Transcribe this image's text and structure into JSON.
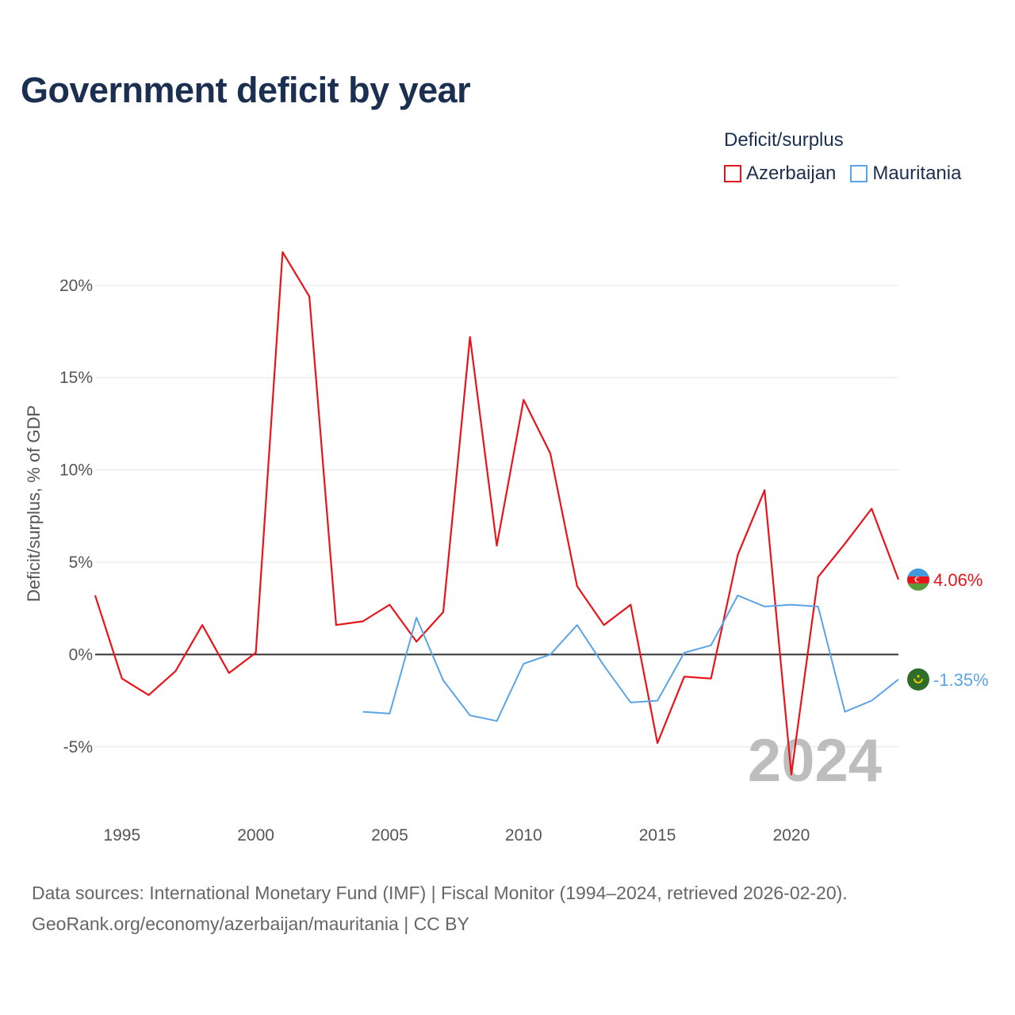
{
  "title": "Government deficit by year",
  "legend": {
    "title": "Deficit/surplus",
    "items": [
      {
        "name": "Azerbaijan",
        "color": "#e8141b"
      },
      {
        "name": "Mauritania",
        "color": "#5ba4e6"
      }
    ]
  },
  "footer": {
    "line1": "Data sources: International Monetary Fund (IMF) | Fiscal Monitor (1994–2024, retrieved 2026-02-20).",
    "line2": "GeoRank.org/economy/azerbaijan/mauritania | CC BY"
  },
  "chart_data": {
    "type": "line",
    "title": "Government deficit by year",
    "xlabel": "",
    "ylabel": "Deficit/surplus, % of GDP",
    "xlim": [
      1994,
      2024
    ],
    "ylim": [
      -7.5,
      23
    ],
    "xticks": [
      1995,
      2000,
      2005,
      2010,
      2015,
      2020
    ],
    "yticks": [
      -5,
      0,
      5,
      10,
      15,
      20
    ],
    "ytick_labels": [
      "-5%",
      "0%",
      "5%",
      "10%",
      "15%",
      "20%"
    ],
    "year_label": "2024",
    "series": [
      {
        "name": "Azerbaijan",
        "color": "#e8141b",
        "end_label": "4.06%",
        "x": [
          1994,
          1995,
          1996,
          1997,
          1998,
          1999,
          2000,
          2001,
          2002,
          2003,
          2004,
          2005,
          2006,
          2007,
          2008,
          2009,
          2010,
          2011,
          2012,
          2013,
          2014,
          2015,
          2016,
          2017,
          2018,
          2019,
          2020,
          2021,
          2022,
          2023,
          2024
        ],
        "values": [
          3.2,
          -1.3,
          -2.2,
          -0.9,
          1.6,
          -1.0,
          0.1,
          21.8,
          19.4,
          1.6,
          1.8,
          2.7,
          0.7,
          2.3,
          17.2,
          5.9,
          13.8,
          10.9,
          3.7,
          1.6,
          2.7,
          -4.8,
          -1.2,
          -1.3,
          5.4,
          8.9,
          -6.5,
          4.2,
          6.0,
          7.9,
          4.06
        ]
      },
      {
        "name": "Mauritania",
        "color": "#5ba4e6",
        "end_label": "-1.35%",
        "x": [
          2004,
          2005,
          2006,
          2007,
          2008,
          2009,
          2010,
          2011,
          2012,
          2013,
          2014,
          2015,
          2016,
          2017,
          2018,
          2019,
          2020,
          2021,
          2022,
          2023,
          2024
        ],
        "values": [
          -3.1,
          -3.2,
          2.0,
          -1.4,
          -3.3,
          -3.6,
          -0.5,
          0.0,
          1.6,
          -0.6,
          -2.6,
          -2.5,
          0.1,
          0.5,
          3.2,
          2.6,
          2.7,
          2.6,
          -3.1,
          -2.5,
          -1.35
        ]
      }
    ]
  }
}
